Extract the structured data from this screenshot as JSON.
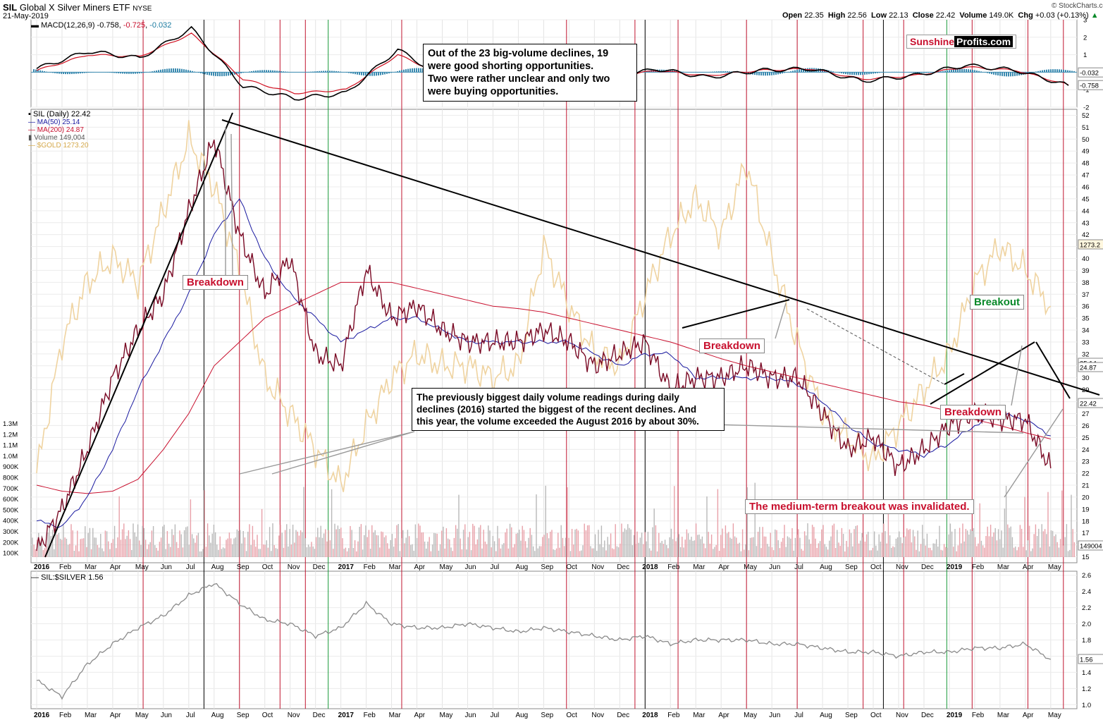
{
  "header": {
    "symbol": "SIL",
    "name": "Global X Silver Miners ETF",
    "exchange": "NYSE",
    "date": "21-May-2019",
    "open_label": "Open",
    "open": "22.35",
    "high_label": "High",
    "high": "22.56",
    "low_label": "Low",
    "low": "22.13",
    "close_label": "Close",
    "close": "22.42",
    "volume_label": "Volume",
    "volume": "149.0K",
    "chg_label": "Chg",
    "chg": "+0.03 (+0.13%)",
    "chg_arrow": "▲",
    "copyright": "© StockCharts.com"
  },
  "brand": {
    "part1": "Sunshine",
    "part2": "Profits.com",
    "color1": "#c8102e"
  },
  "macd_panel": {
    "label": "MACD(12,26,9)",
    "v1": "-0.758",
    "v2": "-0.725",
    "v3": "-0.032",
    "right_v3": "-0.032",
    "right_v1": "-0.758",
    "yticks": [
      "3",
      "2",
      "1",
      "0",
      "-1",
      "-2"
    ]
  },
  "price_panel": {
    "legend": [
      {
        "text": "SIL (Daily) 22.42",
        "color": "#000000"
      },
      {
        "text": "MA(50) 25.14",
        "color": "#1a1aa0"
      },
      {
        "text": "MA(200) 24.87",
        "color": "#c8102e"
      },
      {
        "text": "Volume 149,004",
        "color": "#555555"
      },
      {
        "text": "$GOLD 1273.20",
        "color": "#d4a84a"
      }
    ],
    "yticks": [
      "52",
      "51",
      "50",
      "49",
      "48",
      "47",
      "46",
      "45",
      "44",
      "43",
      "42",
      "41",
      "40",
      "39",
      "38",
      "37",
      "36",
      "35",
      "34",
      "33",
      "32",
      "31",
      "30",
      "29",
      "28",
      "27",
      "26",
      "25",
      "24",
      "23",
      "22",
      "21",
      "20",
      "19",
      "18",
      "17",
      "16",
      "15"
    ],
    "vol_ticks": [
      "1.3M",
      "1.2M",
      "1.1M",
      "1.0M",
      "900K",
      "800K",
      "700K",
      "600K",
      "500K",
      "400K",
      "300K",
      "200K",
      "100K"
    ],
    "tag_gold": "1273.2",
    "tag_ma50": "25.14",
    "tag_ma200": "24.87",
    "tag_price": "22.42",
    "tag_volume": "149004"
  },
  "ratio_panel": {
    "label": "SIL:$SILVER 1.56",
    "yticks": [
      "2.6",
      "2.4",
      "2.2",
      "2.0",
      "1.8",
      "1.6",
      "1.4",
      "1.2",
      "1.0"
    ],
    "tag": "1.56"
  },
  "x_axis": {
    "labels": [
      "2016",
      "Feb",
      "Mar",
      "Apr",
      "May",
      "Jun",
      "Jul",
      "Aug",
      "Sep",
      "Oct",
      "Nov",
      "Dec",
      "2017",
      "Feb",
      "Mar",
      "Apr",
      "May",
      "Jun",
      "Jul",
      "Aug",
      "Sep",
      "Oct",
      "Nov",
      "Dec",
      "2018",
      "Feb",
      "Mar",
      "Apr",
      "May",
      "Jun",
      "Jul",
      "Aug",
      "Sep",
      "Oct",
      "Nov",
      "Dec",
      "2019",
      "Feb",
      "Mar",
      "Apr",
      "May"
    ],
    "bold": [
      "2016",
      "2017",
      "2018",
      "2019"
    ]
  },
  "annotations": {
    "top_note": "Out of the 23 big-volume declines, 19\nwere good shorting opportunities.\nTwo were rather unclear and only two\nwere buying opportunities.",
    "volume_note": "The previously biggest daily volume readings  during daily\ndeclines (2016) started the biggest of the recent declines. And\nthis year, the volume exceeded the August 2016 by about 30%.",
    "breakdown_1": "Breakdown",
    "breakdown_2": "Breakdown",
    "breakdown_3": "Breakdown",
    "breakout": "Breakout",
    "invalidated": "The medium-term breakout was invalidated."
  },
  "chart_data": [
    {
      "type": "line",
      "title": "SIL Global X Silver Miners ETF (Daily)",
      "x": [
        "2016-01",
        "2016-02",
        "2016-03",
        "2016-04",
        "2016-05",
        "2016-06",
        "2016-07",
        "2016-08",
        "2016-09",
        "2016-10",
        "2016-11",
        "2016-12",
        "2017-01",
        "2017-02",
        "2017-03",
        "2017-04",
        "2017-05",
        "2017-06",
        "2017-07",
        "2017-08",
        "2017-09",
        "2017-10",
        "2017-11",
        "2017-12",
        "2018-01",
        "2018-02",
        "2018-03",
        "2018-04",
        "2018-05",
        "2018-06",
        "2018-07",
        "2018-08",
        "2018-09",
        "2018-10",
        "2018-11",
        "2018-12",
        "2019-01",
        "2019-02",
        "2019-03",
        "2019-04",
        "2019-05"
      ],
      "series": [
        {
          "name": "SIL (Daily)",
          "values": [
            15.5,
            19,
            24,
            30,
            34,
            37,
            44,
            50,
            42,
            37,
            40,
            32,
            31,
            39,
            35,
            36,
            34,
            33,
            33,
            33,
            34,
            33,
            31,
            32,
            33,
            29,
            30,
            30,
            31,
            30,
            30,
            27,
            24,
            25,
            22.5,
            24,
            26,
            27,
            26.5,
            26.5,
            22.42
          ]
        },
        {
          "name": "MA(50)",
          "values": [
            18,
            17.5,
            20,
            24,
            29,
            33,
            37,
            42,
            45,
            40,
            37,
            35,
            33,
            34,
            35,
            35,
            34,
            33,
            33,
            33,
            33,
            33,
            32,
            31,
            32,
            32,
            30,
            30,
            30,
            30,
            29.5,
            28,
            26,
            24.5,
            24,
            23.5,
            24.5,
            26,
            27,
            26.5,
            25.14
          ]
        },
        {
          "name": "MA(200)",
          "values": [
            21,
            20.5,
            20.3,
            20.5,
            21.5,
            24,
            27,
            31,
            33,
            35,
            36,
            37,
            38,
            38,
            38,
            37.5,
            37,
            36.5,
            36,
            35.8,
            35.5,
            35,
            34.5,
            34,
            33.5,
            33,
            32.3,
            31.6,
            31,
            30.5,
            30,
            29.5,
            29,
            28.5,
            28,
            27.7,
            27.2,
            26.5,
            26,
            25.4,
            24.87
          ]
        },
        {
          "name": "$GOLD",
          "values": [
            22,
            33,
            38,
            40,
            38,
            44,
            50,
            46,
            39,
            30,
            27,
            24,
            21,
            26,
            30,
            32,
            31,
            31,
            30,
            31,
            41,
            36,
            32,
            31,
            37,
            42,
            45,
            42,
            48,
            40,
            33,
            27,
            25,
            23,
            26,
            29,
            32,
            38,
            41,
            39,
            36
          ]
        }
      ],
      "ylim": [
        15,
        52
      ],
      "annotations": [
        "Breakdown",
        "Breakdown",
        "Breakdown",
        "Breakout",
        "The medium-term breakout was invalidated."
      ]
    },
    {
      "type": "line",
      "title": "MACD(12,26,9)",
      "x": [
        "2016-01",
        "2016-03",
        "2016-05",
        "2016-07",
        "2016-09",
        "2016-11",
        "2017-01",
        "2017-03",
        "2017-05",
        "2017-07",
        "2017-09",
        "2017-11",
        "2018-01",
        "2018-03",
        "2018-05",
        "2018-07",
        "2018-09",
        "2018-11",
        "2019-01",
        "2019-03",
        "2019-05"
      ],
      "series": [
        {
          "name": "MACD",
          "values": [
            0.2,
            1.2,
            0.8,
            2.5,
            -0.8,
            -1.5,
            -1.2,
            1.3,
            -0.5,
            0.3,
            0.5,
            -0.5,
            0.2,
            -0.3,
            0.1,
            0.2,
            -0.5,
            -0.2,
            0.4,
            0.1,
            -0.758
          ]
        },
        {
          "name": "Signal",
          "values": [
            0.1,
            1.0,
            0.9,
            2.2,
            -0.4,
            -1.2,
            -1.0,
            1.0,
            -0.3,
            0.3,
            0.4,
            -0.4,
            0.1,
            -0.2,
            0.1,
            0.2,
            -0.4,
            -0.2,
            0.3,
            0.1,
            -0.725
          ]
        }
      ],
      "ylim": [
        -2,
        3
      ]
    },
    {
      "type": "line",
      "title": "SIL:$SILVER",
      "x": [
        "2016-01",
        "2016-02",
        "2016-03",
        "2016-04",
        "2016-05",
        "2016-06",
        "2016-07",
        "2016-08",
        "2016-09",
        "2016-10",
        "2016-11",
        "2016-12",
        "2017-01",
        "2017-02",
        "2017-03",
        "2017-04",
        "2017-05",
        "2017-06",
        "2017-07",
        "2017-08",
        "2017-09",
        "2017-10",
        "2017-11",
        "2017-12",
        "2018-01",
        "2018-02",
        "2018-03",
        "2018-04",
        "2018-05",
        "2018-06",
        "2018-07",
        "2018-08",
        "2018-09",
        "2018-10",
        "2018-11",
        "2018-12",
        "2019-01",
        "2019-02",
        "2019-03",
        "2019-04",
        "2019-05"
      ],
      "series": [
        {
          "name": "SIL:$SILVER",
          "values": [
            1.3,
            1.1,
            1.5,
            1.75,
            1.95,
            2.1,
            2.35,
            2.5,
            2.25,
            2.05,
            2.0,
            1.85,
            1.95,
            2.25,
            2.0,
            1.95,
            1.95,
            2.0,
            1.95,
            1.9,
            1.95,
            1.9,
            1.85,
            1.8,
            1.85,
            1.75,
            1.8,
            1.8,
            1.8,
            1.75,
            1.75,
            1.7,
            1.65,
            1.65,
            1.6,
            1.65,
            1.65,
            1.7,
            1.7,
            1.75,
            1.56
          ]
        }
      ],
      "ylim": [
        1.0,
        2.6
      ]
    }
  ]
}
